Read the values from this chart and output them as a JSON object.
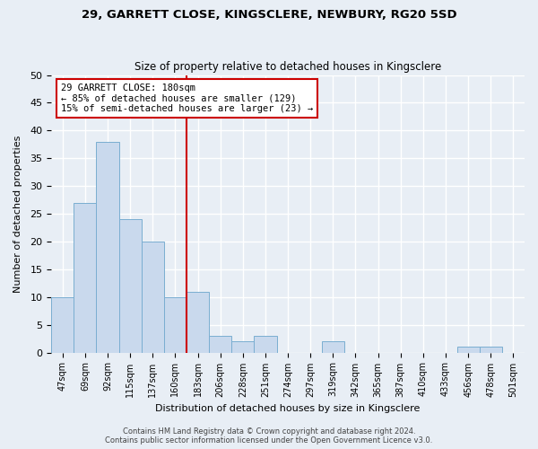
{
  "title": "29, GARRETT CLOSE, KINGSCLERE, NEWBURY, RG20 5SD",
  "subtitle": "Size of property relative to detached houses in Kingsclere",
  "xlabel": "Distribution of detached houses by size in Kingsclere",
  "ylabel": "Number of detached properties",
  "bar_labels": [
    "47sqm",
    "69sqm",
    "92sqm",
    "115sqm",
    "137sqm",
    "160sqm",
    "183sqm",
    "206sqm",
    "228sqm",
    "251sqm",
    "274sqm",
    "297sqm",
    "319sqm",
    "342sqm",
    "365sqm",
    "387sqm",
    "410sqm",
    "433sqm",
    "456sqm",
    "478sqm",
    "501sqm"
  ],
  "bar_heights": [
    10,
    27,
    38,
    24,
    20,
    10,
    11,
    3,
    2,
    3,
    0,
    0,
    2,
    0,
    0,
    0,
    0,
    0,
    1,
    1,
    0
  ],
  "bar_color": "#c9d9ed",
  "bar_edgecolor": "#7aaed1",
  "bg_color": "#e8eef5",
  "grid_color": "#ffffff",
  "redline_x": 6,
  "annotation_title": "29 GARRETT CLOSE: 180sqm",
  "annotation_line1": "← 85% of detached houses are smaller (129)",
  "annotation_line2": "15% of semi-detached houses are larger (23) →",
  "annotation_box_color": "#ffffff",
  "annotation_box_edgecolor": "#cc0000",
  "redline_color": "#cc0000",
  "ylim": [
    0,
    50
  ],
  "yticks": [
    0,
    5,
    10,
    15,
    20,
    25,
    30,
    35,
    40,
    45,
    50
  ],
  "footer_line1": "Contains HM Land Registry data © Crown copyright and database right 2024.",
  "footer_line2": "Contains public sector information licensed under the Open Government Licence v3.0."
}
